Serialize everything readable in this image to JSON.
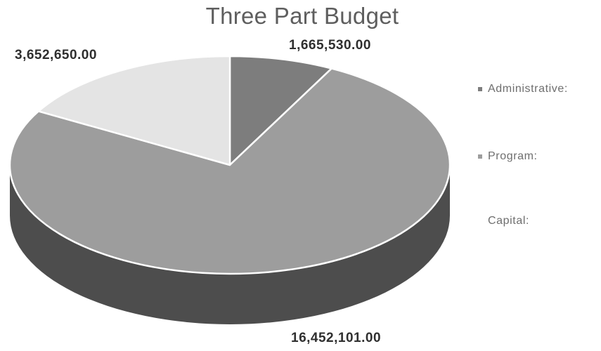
{
  "chart_data": {
    "type": "pie",
    "title": "Three Part Budget",
    "categories": [
      "Administrative:",
      "Program:",
      "Capital:"
    ],
    "values": [
      1665530.0,
      16452101.0,
      3652650.0
    ],
    "value_labels": [
      "1,665,530.00",
      "16,452,101.00",
      "3,652,650.00"
    ],
    "legend_position": "right",
    "style": "3d",
    "colors": [
      "#7d7d7d",
      "#9d9d9d",
      "#e4e4e4"
    ],
    "side_colors": [
      "#4d4d4d",
      "#4d4d4d",
      "#b0b0b0"
    ]
  }
}
